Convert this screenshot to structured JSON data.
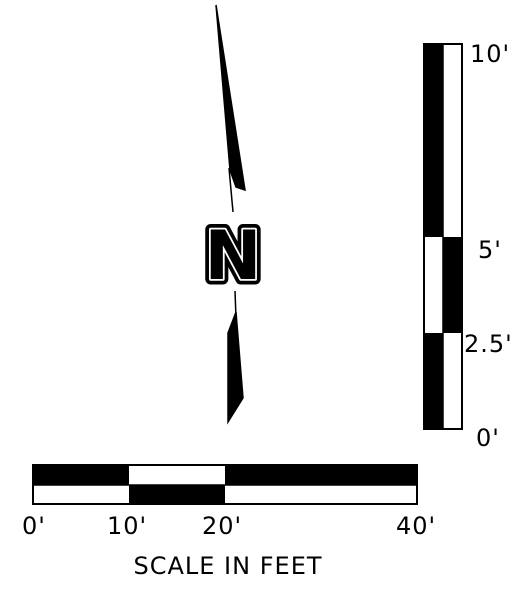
{
  "north_arrow": {
    "letter": "N"
  },
  "vertical_scale": {
    "labels": [
      "10'",
      "5'",
      "2.5'",
      "0'"
    ]
  },
  "horizontal_scale": {
    "labels": [
      "0'",
      "10'",
      "20'",
      "40'"
    ],
    "caption": "SCALE IN FEET"
  },
  "colors": {
    "ink": "#000000",
    "paper": "#ffffff"
  }
}
